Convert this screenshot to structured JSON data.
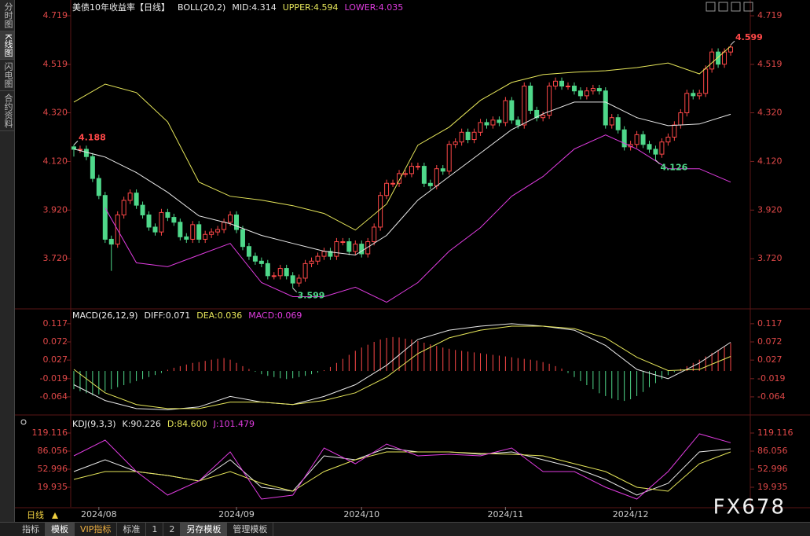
{
  "sidebar_tabs": [
    "分时图",
    "K线图",
    "闪电图",
    "合约资料"
  ],
  "toolbar": {
    "period": "日线",
    "tabs": [
      "指标",
      "模板",
      "VIP指标",
      "标准",
      "1",
      "2",
      "另存模板",
      "管理模板"
    ]
  },
  "watermark": "FX678",
  "chart_data": [
    {
      "type": "candlestick",
      "title": "美债10年收益率【日线】",
      "indicator": "BOLL(20,2)",
      "up_color": "#ff4848",
      "down_color": "#4fd88a",
      "ylim": [
        3.517,
        4.758
      ],
      "yticks": [
        4.719,
        4.519,
        {
          "value": 4.32,
          "label": "4.320"
        },
        {
          "value": 4.12,
          "label": "4.120"
        },
        {
          "value": 3.92,
          "label": "3.920"
        },
        {
          "value": 3.72,
          "label": "3.720"
        }
      ],
      "xticks": [
        {
          "value": 4,
          "label": "2024/08"
        },
        {
          "value": 26,
          "label": "2024/09"
        },
        {
          "value": 46,
          "label": "2024/10"
        },
        {
          "value": 69,
          "label": "2024/11"
        },
        {
          "value": 89,
          "label": "2024/12"
        }
      ],
      "candles": [
        [
          4.18,
          4.188,
          4.14,
          4.17
        ],
        [
          4.17,
          4.185,
          4.155,
          4.17
        ],
        [
          4.17,
          4.185,
          4.125,
          4.14
        ],
        [
          4.14,
          4.155,
          4.035,
          4.05
        ],
        [
          4.05,
          4.065,
          3.965,
          3.98
        ],
        [
          3.98,
          3.995,
          3.785,
          3.8
        ],
        [
          3.8,
          3.815,
          3.67,
          3.78
        ],
        [
          3.78,
          3.915,
          3.765,
          3.9
        ],
        [
          3.9,
          3.975,
          3.885,
          3.96
        ],
        [
          3.96,
          4.005,
          3.945,
          3.99
        ],
        [
          3.99,
          4.005,
          3.925,
          3.94
        ],
        [
          3.94,
          3.955,
          3.885,
          3.9
        ],
        [
          3.9,
          3.915,
          3.835,
          3.85
        ],
        [
          3.85,
          3.865,
          3.815,
          3.83
        ],
        [
          3.83,
          3.925,
          3.815,
          3.91
        ],
        [
          3.91,
          3.925,
          3.875,
          3.89
        ],
        [
          3.89,
          3.905,
          3.855,
          3.87
        ],
        [
          3.87,
          3.885,
          3.795,
          3.81
        ],
        [
          3.81,
          3.825,
          3.785,
          3.8
        ],
        [
          3.8,
          3.875,
          3.785,
          3.86
        ],
        [
          3.86,
          3.875,
          3.785,
          3.8
        ],
        [
          3.8,
          3.835,
          3.785,
          3.82
        ],
        [
          3.82,
          3.845,
          3.805,
          3.83
        ],
        [
          3.83,
          3.855,
          3.815,
          3.84
        ],
        [
          3.84,
          3.885,
          3.825,
          3.87
        ],
        [
          3.87,
          3.915,
          3.855,
          3.9
        ],
        [
          3.9,
          3.915,
          3.825,
          3.84
        ],
        [
          3.84,
          3.855,
          3.755,
          3.77
        ],
        [
          3.77,
          3.785,
          3.715,
          3.73
        ],
        [
          3.73,
          3.745,
          3.695,
          3.71
        ],
        [
          3.71,
          3.725,
          3.685,
          3.7
        ],
        [
          3.7,
          3.715,
          3.635,
          3.65
        ],
        [
          3.65,
          3.665,
          3.635,
          3.65
        ],
        [
          3.65,
          3.695,
          3.635,
          3.68
        ],
        [
          3.68,
          3.695,
          3.635,
          3.65
        ],
        [
          3.65,
          3.665,
          3.599,
          3.62
        ],
        [
          3.62,
          3.655,
          3.605,
          3.64
        ],
        [
          3.64,
          3.715,
          3.625,
          3.7
        ],
        [
          3.7,
          3.725,
          3.685,
          3.71
        ],
        [
          3.71,
          3.745,
          3.695,
          3.73
        ],
        [
          3.73,
          3.765,
          3.715,
          3.75
        ],
        [
          3.75,
          3.765,
          3.715,
          3.73
        ],
        [
          3.73,
          3.805,
          3.715,
          3.79
        ],
        [
          3.79,
          3.805,
          3.775,
          3.79
        ],
        [
          3.79,
          3.805,
          3.735,
          3.75
        ],
        [
          3.75,
          3.795,
          3.735,
          3.78
        ],
        [
          3.78,
          3.795,
          3.725,
          3.74
        ],
        [
          3.74,
          3.805,
          3.725,
          3.79
        ],
        [
          3.79,
          3.865,
          3.775,
          3.85
        ],
        [
          3.85,
          3.995,
          3.835,
          3.98
        ],
        [
          3.98,
          4.045,
          3.965,
          4.03
        ],
        [
          4.03,
          4.045,
          4.015,
          4.03
        ],
        [
          4.03,
          4.085,
          4.015,
          4.07
        ],
        [
          4.07,
          4.085,
          4.055,
          4.07
        ],
        [
          4.07,
          4.115,
          4.055,
          4.1
        ],
        [
          4.1,
          4.115,
          4.085,
          4.1
        ],
        [
          4.1,
          4.115,
          4.015,
          4.03
        ],
        [
          4.03,
          4.045,
          4.005,
          4.02
        ],
        [
          4.02,
          4.105,
          4.005,
          4.09
        ],
        [
          4.09,
          4.105,
          4.065,
          4.08
        ],
        [
          4.08,
          4.205,
          4.065,
          4.19
        ],
        [
          4.19,
          4.215,
          4.175,
          4.2
        ],
        [
          4.2,
          4.255,
          4.185,
          4.24
        ],
        [
          4.24,
          4.255,
          4.195,
          4.21
        ],
        [
          4.21,
          4.255,
          4.195,
          4.24
        ],
        [
          4.24,
          4.295,
          4.225,
          4.28
        ],
        [
          4.28,
          4.295,
          4.255,
          4.27
        ],
        [
          4.27,
          4.305,
          4.255,
          4.29
        ],
        [
          4.29,
          4.305,
          4.265,
          4.28
        ],
        [
          4.28,
          4.385,
          4.265,
          4.37
        ],
        [
          4.37,
          4.385,
          4.275,
          4.29
        ],
        [
          4.29,
          4.305,
          4.255,
          4.27
        ],
        [
          4.27,
          4.445,
          4.255,
          4.43
        ],
        [
          4.43,
          4.445,
          4.315,
          4.33
        ],
        [
          4.33,
          4.345,
          4.285,
          4.3
        ],
        [
          4.3,
          4.325,
          4.285,
          4.31
        ],
        [
          4.31,
          4.445,
          4.295,
          4.43
        ],
        [
          4.43,
          4.465,
          4.415,
          4.45
        ],
        [
          4.45,
          4.465,
          4.415,
          4.43
        ],
        [
          4.43,
          4.445,
          4.415,
          4.43
        ],
        [
          4.43,
          4.445,
          4.395,
          4.41
        ],
        [
          4.41,
          4.425,
          4.375,
          4.39
        ],
        [
          4.39,
          4.425,
          4.375,
          4.41
        ],
        [
          4.41,
          4.435,
          4.395,
          4.42
        ],
        [
          4.42,
          4.435,
          4.395,
          4.41
        ],
        [
          4.41,
          4.425,
          4.255,
          4.27
        ],
        [
          4.27,
          4.315,
          4.255,
          4.3
        ],
        [
          4.3,
          4.315,
          4.235,
          4.25
        ],
        [
          4.25,
          4.265,
          4.165,
          4.18
        ],
        [
          4.18,
          4.205,
          4.165,
          4.19
        ],
        [
          4.19,
          4.245,
          4.175,
          4.23
        ],
        [
          4.23,
          4.245,
          4.175,
          4.19
        ],
        [
          4.19,
          4.205,
          4.155,
          4.17
        ],
        [
          4.17,
          4.185,
          4.126,
          4.15
        ],
        [
          4.15,
          4.215,
          4.135,
          4.2
        ],
        [
          4.2,
          4.235,
          4.185,
          4.22
        ],
        [
          4.22,
          4.285,
          4.205,
          4.27
        ],
        [
          4.27,
          4.335,
          4.255,
          4.32
        ],
        [
          4.32,
          4.415,
          4.305,
          4.4
        ],
        [
          4.4,
          4.415,
          4.375,
          4.39
        ],
        [
          4.39,
          4.415,
          4.375,
          4.4
        ],
        [
          4.4,
          4.515,
          4.385,
          4.5
        ],
        [
          4.5,
          4.585,
          4.485,
          4.57
        ],
        [
          4.57,
          4.585,
          4.505,
          4.52
        ],
        [
          4.52,
          4.585,
          4.505,
          4.57
        ],
        [
          4.57,
          4.599,
          4.555,
          4.59
        ]
      ],
      "x": [
        0,
        5,
        10,
        15,
        20,
        25,
        30,
        35,
        40,
        45,
        50,
        55,
        60,
        65,
        70,
        75,
        80,
        85,
        90,
        95,
        100,
        105
      ],
      "series": [
        {
          "name": "MID:4.314",
          "color": "#e8e8e8",
          "values": [
            4.171,
            4.138,
            4.074,
            3.993,
            3.896,
            3.864,
            3.816,
            3.783,
            3.751,
            3.735,
            3.816,
            3.961,
            4.058,
            4.154,
            4.251,
            4.316,
            4.364,
            4.364,
            4.3,
            4.267,
            4.274,
            4.314
          ]
        },
        {
          "name": "UPPER:4.594",
          "color": "#e6e65a",
          "values": [
            4.364,
            4.438,
            4.403,
            4.283,
            4.035,
            3.977,
            3.961,
            3.938,
            3.906,
            3.838,
            3.945,
            4.187,
            4.261,
            4.371,
            4.445,
            4.477,
            4.487,
            4.493,
            4.506,
            4.525,
            4.48,
            4.594
          ]
        },
        {
          "name": "LOWER:4.035",
          "color": "#e03ce0",
          "values": [
            null,
            3.929,
            3.703,
            3.687,
            3.735,
            3.783,
            3.622,
            3.564,
            3.564,
            3.603,
            3.541,
            3.622,
            3.751,
            3.848,
            3.977,
            4.058,
            4.171,
            4.229,
            4.171,
            4.09,
            4.09,
            4.035
          ]
        }
      ]
    },
    {
      "type": "macd",
      "title": "MACD(26,12,9)",
      "ylim": [
        -0.103,
        0.144
      ],
      "yticks": [
        0.117,
        0.072,
        0.027,
        -0.019,
        -0.064
      ],
      "x": [
        0,
        5,
        10,
        15,
        20,
        25,
        30,
        35,
        40,
        45,
        50,
        55,
        60,
        65,
        70,
        75,
        80,
        85,
        90,
        95,
        100,
        105
      ],
      "series": [
        {
          "name": "DIFF:0.071",
          "color": "#e8e8e8",
          "values": [
            -0.034,
            -0.073,
            -0.093,
            -0.096,
            -0.089,
            -0.063,
            -0.077,
            -0.083,
            -0.063,
            -0.034,
            0.014,
            0.078,
            0.101,
            0.111,
            0.117,
            0.111,
            0.101,
            0.063,
            0.004,
            -0.019,
            0.02,
            0.071
          ]
        },
        {
          "name": "DEA:0.036",
          "color": "#e6e65a",
          "values": [
            0.004,
            -0.054,
            -0.083,
            -0.093,
            -0.093,
            -0.077,
            -0.077,
            -0.083,
            -0.073,
            -0.054,
            -0.015,
            0.043,
            0.082,
            0.101,
            0.111,
            0.111,
            0.105,
            0.082,
            0.034,
            0.001,
            0.004,
            0.036
          ]
        }
      ],
      "histogram": {
        "name": "MACD:0.069",
        "color": "#e03ce0",
        "up_color": "#ff4848",
        "down_color": "#4fd88a",
        "values": [
          -0.045,
          -0.05,
          -0.055,
          -0.06,
          -0.058,
          -0.05,
          -0.045,
          -0.04,
          -0.035,
          -0.03,
          -0.025,
          -0.02,
          -0.015,
          -0.01,
          -0.005,
          0.003,
          0.008,
          0.012,
          0.016,
          0.02,
          0.022,
          0.025,
          0.028,
          0.03,
          0.032,
          0.028,
          0.02,
          0.012,
          0.005,
          -0.002,
          -0.008,
          -0.012,
          -0.015,
          -0.018,
          -0.02,
          -0.018,
          -0.015,
          -0.012,
          -0.008,
          -0.004,
          0.002,
          0.01,
          0.02,
          0.03,
          0.04,
          0.05,
          0.058,
          0.065,
          0.072,
          0.078,
          0.082,
          0.084,
          0.083,
          0.08,
          0.078,
          0.074,
          0.07,
          0.066,
          0.062,
          0.058,
          0.055,
          0.052,
          0.05,
          0.048,
          0.046,
          0.044,
          0.042,
          0.04,
          0.038,
          0.036,
          0.034,
          0.032,
          0.03,
          0.028,
          0.026,
          0.022,
          0.018,
          0.012,
          0.006,
          -0.005,
          -0.015,
          -0.025,
          -0.035,
          -0.045,
          -0.055,
          -0.062,
          -0.068,
          -0.072,
          -0.074,
          -0.07,
          -0.062,
          -0.052,
          -0.04,
          -0.03,
          -0.02,
          -0.01,
          -0.003,
          0.005,
          0.012,
          0.02,
          0.028,
          0.036,
          0.045,
          0.052,
          0.06,
          0.069
        ]
      }
    },
    {
      "type": "kdj",
      "title": "KDJ(9,3,3)",
      "ylim": [
        -16,
        146.4
      ],
      "yticks": [
        119.116,
        86.056,
        52.996,
        19.935
      ],
      "x": [
        0,
        5,
        10,
        15,
        20,
        25,
        30,
        35,
        40,
        45,
        50,
        55,
        60,
        65,
        70,
        75,
        80,
        85,
        90,
        95,
        100,
        105
      ],
      "series": [
        {
          "name": "K:90.226",
          "color": "#e8e8e8",
          "values": [
            48.7,
            70.2,
            48.7,
            41.5,
            31.4,
            70.2,
            19.9,
            12.7,
            77.4,
            70.2,
            91.8,
            84.6,
            84.6,
            80.3,
            84.6,
            70.2,
            55.9,
            34.3,
            5.6,
            27.1,
            84.6,
            90.226
          ]
        },
        {
          "name": "D:84.600",
          "color": "#e6e65a",
          "values": [
            34.3,
            48.7,
            48.7,
            41.5,
            31.4,
            48.7,
            27.1,
            12.7,
            48.7,
            70.2,
            84.6,
            84.6,
            84.6,
            81.7,
            80.3,
            77.4,
            63.1,
            48.7,
            19.9,
            12.7,
            63.1,
            84.6
          ]
        },
        {
          "name": "J:101.479",
          "color": "#e03ce0",
          "values": [
            77.4,
            106.2,
            48.7,
            5.6,
            31.4,
            84.6,
            -1.6,
            5.6,
            91.8,
            63.1,
            99.0,
            77.4,
            80.3,
            77.4,
            91.8,
            48.7,
            48.7,
            19.9,
            -1.6,
            48.7,
            117.7,
            101.479
          ]
        }
      ]
    }
  ]
}
